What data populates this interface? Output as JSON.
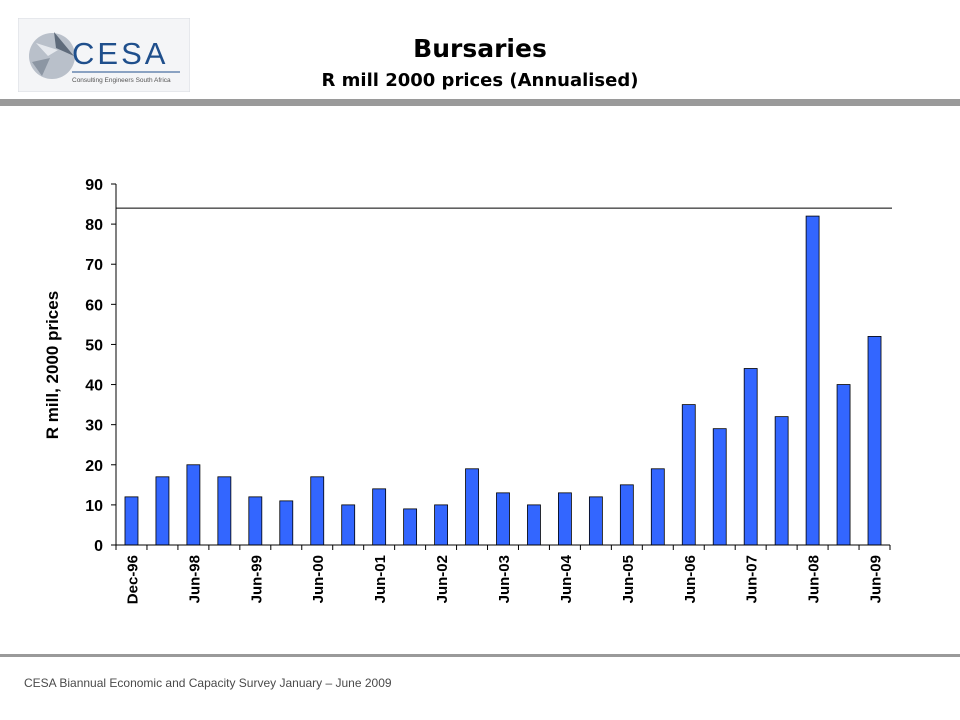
{
  "header": {
    "logo_text": "CESA",
    "logo_tagline": "Consulting Engineers South Africa",
    "title": "Bursaries",
    "subtitle": "R mill 2000 prices (Annualised)"
  },
  "footer": {
    "text": "CESA Biannual Economic and Capacity Survey January – June 2009"
  },
  "chart_data": {
    "type": "bar",
    "title": "Bursaries",
    "subtitle": "R mill 2000 prices (Annualised)",
    "ylabel": "R mill, 2000 prices",
    "xlabel": "",
    "ylim": [
      0,
      90
    ],
    "yticks": [
      0,
      10,
      20,
      30,
      40,
      50,
      60,
      70,
      80,
      90
    ],
    "reference_line": 84,
    "bar_color": "#3366ff",
    "grid": false,
    "legend": "none",
    "categories": [
      "Dec-96",
      "",
      "Jun-98",
      "",
      "Jun-99",
      "",
      "Jun-00",
      "",
      "Jun-01",
      "",
      "Jun-02",
      "",
      "Jun-03",
      "",
      "Jun-04",
      "",
      "Jun-05",
      "",
      "Jun-06",
      "",
      "Jun-07",
      "",
      "Jun-08",
      "",
      "Jun-09"
    ],
    "values": [
      12,
      17,
      20,
      17,
      12,
      11,
      17,
      10,
      14,
      9,
      10,
      19,
      13,
      10,
      13,
      12,
      15,
      19,
      35,
      29,
      44,
      32,
      82,
      40,
      52
    ]
  }
}
